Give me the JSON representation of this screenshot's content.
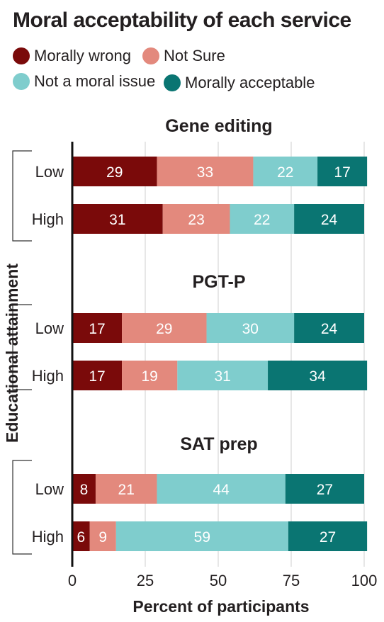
{
  "title": "Moral acceptability of each service",
  "legend": [
    {
      "label": "Morally wrong",
      "color": "#7a0a0a"
    },
    {
      "label": "Not Sure",
      "color": "#e3897d"
    },
    {
      "label": "Not a moral issue",
      "color": "#7fcdcd"
    },
    {
      "label": "Morally acceptable",
      "color": "#0a7572"
    }
  ],
  "chart_data": {
    "type": "bar",
    "stacked": true,
    "orientation": "horizontal",
    "xlabel": "Percent of participants",
    "ylabel": "Educational attainment",
    "xlim": [
      0,
      100
    ],
    "xticks": [
      0,
      25,
      50,
      75,
      100
    ],
    "grid": true,
    "legend_position": "top",
    "series_names": [
      "Morally wrong",
      "Not Sure",
      "Not a moral issue",
      "Morally acceptable"
    ],
    "colors": [
      "#7a0a0a",
      "#e3897d",
      "#7fcdcd",
      "#0a7572"
    ],
    "label_colors": [
      "#ffffff",
      "#ffffff",
      "#ffffff",
      "#ffffff"
    ],
    "groups": [
      {
        "title": "Gene editing",
        "rows": [
          {
            "label": "Low",
            "values": [
              29,
              33,
              22,
              17
            ]
          },
          {
            "label": "High",
            "values": [
              31,
              23,
              22,
              24
            ]
          }
        ]
      },
      {
        "title": "PGT-P",
        "rows": [
          {
            "label": "Low",
            "values": [
              17,
              29,
              30,
              24
            ]
          },
          {
            "label": "High",
            "values": [
              17,
              19,
              31,
              34
            ]
          }
        ]
      },
      {
        "title": "SAT prep",
        "rows": [
          {
            "label": "Low",
            "values": [
              8,
              21,
              44,
              27
            ]
          },
          {
            "label": "High",
            "values": [
              6,
              9,
              59,
              27
            ]
          }
        ]
      }
    ]
  }
}
